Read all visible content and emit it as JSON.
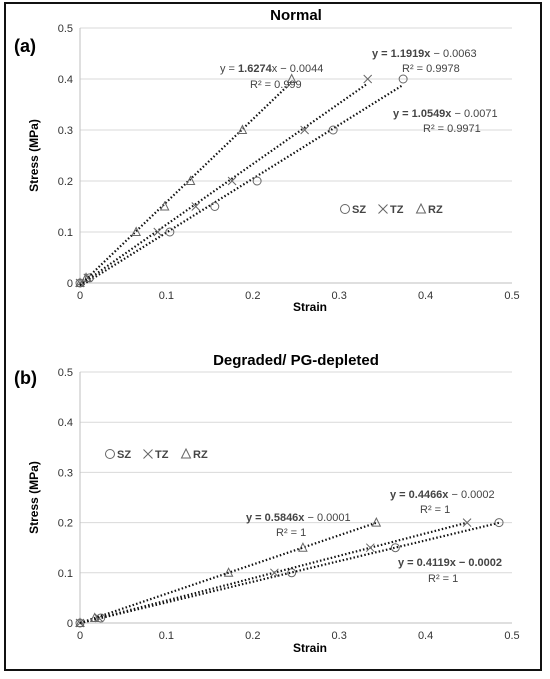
{
  "chart_data": [
    {
      "type": "scatter",
      "panel_label": "(a)",
      "title": "Normal",
      "xlabel": "Strain",
      "ylabel": "Stress (MPa)",
      "xlim": [
        0,
        0.5
      ],
      "ylim": [
        0,
        0.5
      ],
      "xticks": [
        "0",
        "0.1",
        "0.2",
        "0.3",
        "0.4",
        "0.5"
      ],
      "yticks": [
        "0",
        "0.1",
        "0.2",
        "0.3",
        "0.4",
        "0.5"
      ],
      "trendline": "dotted",
      "series": [
        {
          "name": "SZ",
          "marker": "circle",
          "points": [
            [
              0,
              0
            ],
            [
              0.011,
              0.01
            ],
            [
              0.104,
              0.1
            ],
            [
              0.156,
              0.15
            ],
            [
              0.205,
              0.2
            ],
            [
              0.293,
              0.3
            ],
            [
              0.374,
              0.4
            ]
          ],
          "equation": "y = 1.0549x − 0.0071",
          "eq_bold": "y = 1.0549x",
          "eq_rest": " − 0.0071",
          "r2": "R² = 0.9971"
        },
        {
          "name": "TZ",
          "marker": "x",
          "points": [
            [
              0,
              0
            ],
            [
              0.009,
              0.01
            ],
            [
              0.09,
              0.1
            ],
            [
              0.134,
              0.15
            ],
            [
              0.176,
              0.2
            ],
            [
              0.26,
              0.3
            ],
            [
              0.333,
              0.4
            ]
          ],
          "equation": "y = 1.1919x − 0.0063",
          "eq_bold": "y = 1.1919x",
          "eq_rest": " − 0.0063",
          "r2": "R² = 0.9978"
        },
        {
          "name": "RZ",
          "marker": "triangle",
          "points": [
            [
              0,
              0
            ],
            [
              0.007,
              0.01
            ],
            [
              0.065,
              0.1
            ],
            [
              0.098,
              0.15
            ],
            [
              0.128,
              0.2
            ],
            [
              0.188,
              0.3
            ],
            [
              0.245,
              0.4
            ]
          ],
          "equation": "y = 1.6274x − 0.0044",
          "eq_plain": "y = ",
          "eq_bold": "1.6274",
          "eq_rest": "x − 0.0044",
          "r2": "R² = 0.999"
        }
      ],
      "legend": [
        "SZ",
        "TZ",
        "RZ"
      ],
      "legend_position": "lower-right"
    },
    {
      "type": "scatter",
      "panel_label": "(b)",
      "title": "Degraded/ PG-depleted",
      "xlabel": "Strain",
      "ylabel": "Stress (MPa)",
      "xlim": [
        0,
        0.5
      ],
      "ylim": [
        0,
        0.5
      ],
      "xticks": [
        "0",
        "0.1",
        "0.2",
        "0.3",
        "0.4",
        "0.5"
      ],
      "yticks": [
        "0",
        "0.1",
        "0.2",
        "0.3",
        "0.4",
        "0.5"
      ],
      "trendline": "dotted",
      "series": [
        {
          "name": "SZ",
          "marker": "circle",
          "points": [
            [
              0,
              0
            ],
            [
              0.024,
              0.01
            ],
            [
              0.245,
              0.1
            ],
            [
              0.365,
              0.15
            ],
            [
              0.485,
              0.2
            ]
          ],
          "equation": "y = 0.4119x − 0.0002",
          "eq_bold": "y = 0.4119x − 0.0002",
          "eq_rest": "",
          "r2": "R² = 1",
          "r2_bold": true
        },
        {
          "name": "TZ",
          "marker": "x",
          "points": [
            [
              0,
              0
            ],
            [
              0.022,
              0.01
            ],
            [
              0.225,
              0.1
            ],
            [
              0.336,
              0.15
            ],
            [
              0.448,
              0.2
            ]
          ],
          "equation": "y = 0.4466x − 0.0002",
          "eq_bold": "y = 0.4466x",
          "eq_rest": " − 0.0002",
          "r2": "R² = 1"
        },
        {
          "name": "RZ",
          "marker": "triangle",
          "points": [
            [
              0,
              0
            ],
            [
              0.017,
              0.01
            ],
            [
              0.172,
              0.1
            ],
            [
              0.258,
              0.15
            ],
            [
              0.343,
              0.2
            ]
          ],
          "equation": "y = 0.5846x − 0.0001",
          "eq_bold": "y = 0.5846x",
          "eq_rest": " − 0.0001",
          "r2": "R² = 1"
        }
      ],
      "legend": [
        "SZ",
        "TZ",
        "RZ"
      ],
      "legend_position": "upper-left"
    }
  ]
}
